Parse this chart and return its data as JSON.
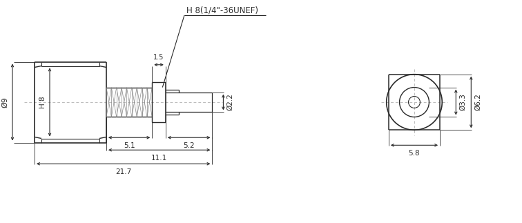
{
  "bg_color": "#ffffff",
  "line_color": "#2a2a2a",
  "dim_color": "#2a2a2a",
  "center_line_color": "#bbbbbb",
  "annotations": {
    "h8_label": "H 8(1/4\"-36UNEF)",
    "dim_1_5": "1.5",
    "dim_5_1": "5.1",
    "dim_5_2": "5.2",
    "dim_11_1": "11.1",
    "dim_21_7": "21.7",
    "dim_h8": "H 8",
    "dim_d9": "Ø9",
    "dim_2_2": "Ø2.2",
    "dim_d3_3": "Ø3.3",
    "dim_d6_2": "Ø6.2",
    "dim_5_8": "5.8"
  },
  "figsize": [
    7.56,
    3.23
  ],
  "dpi": 100
}
